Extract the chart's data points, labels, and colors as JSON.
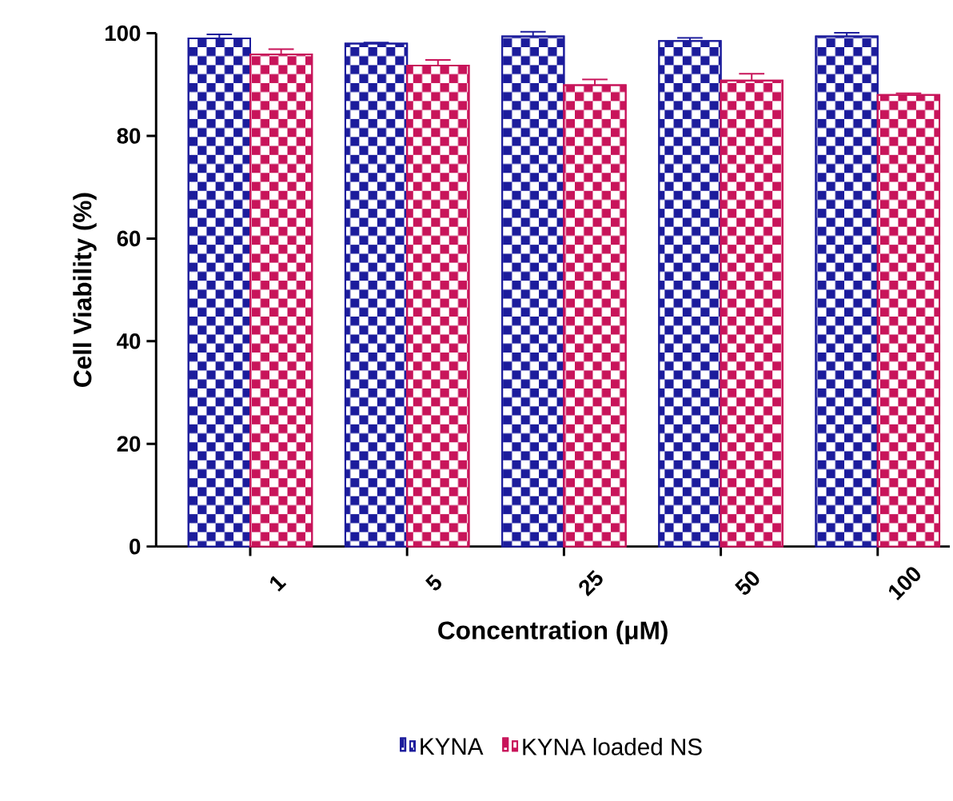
{
  "chart_data": {
    "type": "bar",
    "xlabel": "Concentration (μM)",
    "ylabel": "Cell Viability (%)",
    "categories": [
      "1",
      "5",
      "25",
      "50",
      "100"
    ],
    "series": [
      {
        "name": "KYNA",
        "color": "#1c1c9c",
        "values": [
          99,
          98,
          99.4,
          98.5,
          99.4
        ],
        "errors": [
          0.8,
          0.2,
          0.9,
          0.6,
          0.7
        ]
      },
      {
        "name": "KYNA loaded NS",
        "color": "#c8145a",
        "values": [
          95.9,
          93.7,
          89.9,
          90.8,
          88
        ],
        "errors": [
          1.0,
          1.1,
          1.1,
          1.3,
          0.3
        ]
      }
    ],
    "ylim": [
      0,
      100
    ],
    "yticks": [
      0,
      20,
      40,
      60,
      80,
      100
    ],
    "legend": "bottom"
  }
}
